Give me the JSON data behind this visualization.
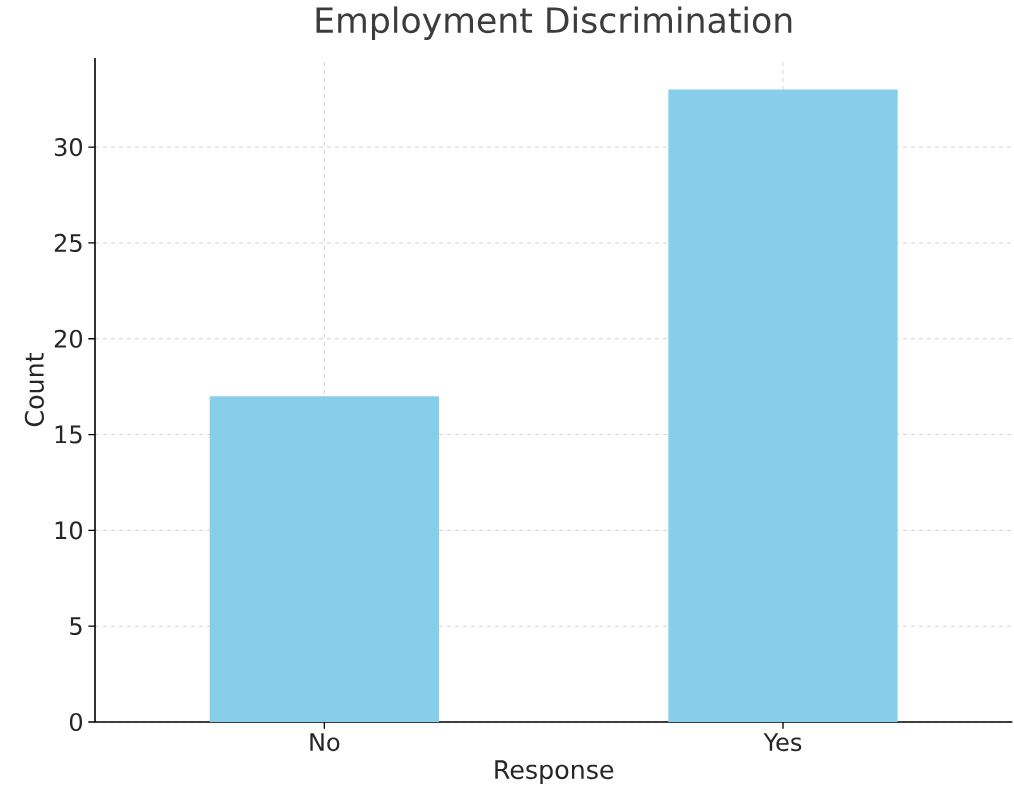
{
  "chart_data": {
    "type": "bar",
    "title": "Employment Discrimination",
    "xlabel": "Response",
    "ylabel": "Count",
    "categories": [
      "No",
      "Yes"
    ],
    "values": [
      17,
      33
    ],
    "color": "#87ceeb",
    "ylim": [
      0,
      34.65
    ],
    "yticks": [
      0,
      5,
      10,
      15,
      20,
      25,
      30
    ],
    "grid": true
  }
}
